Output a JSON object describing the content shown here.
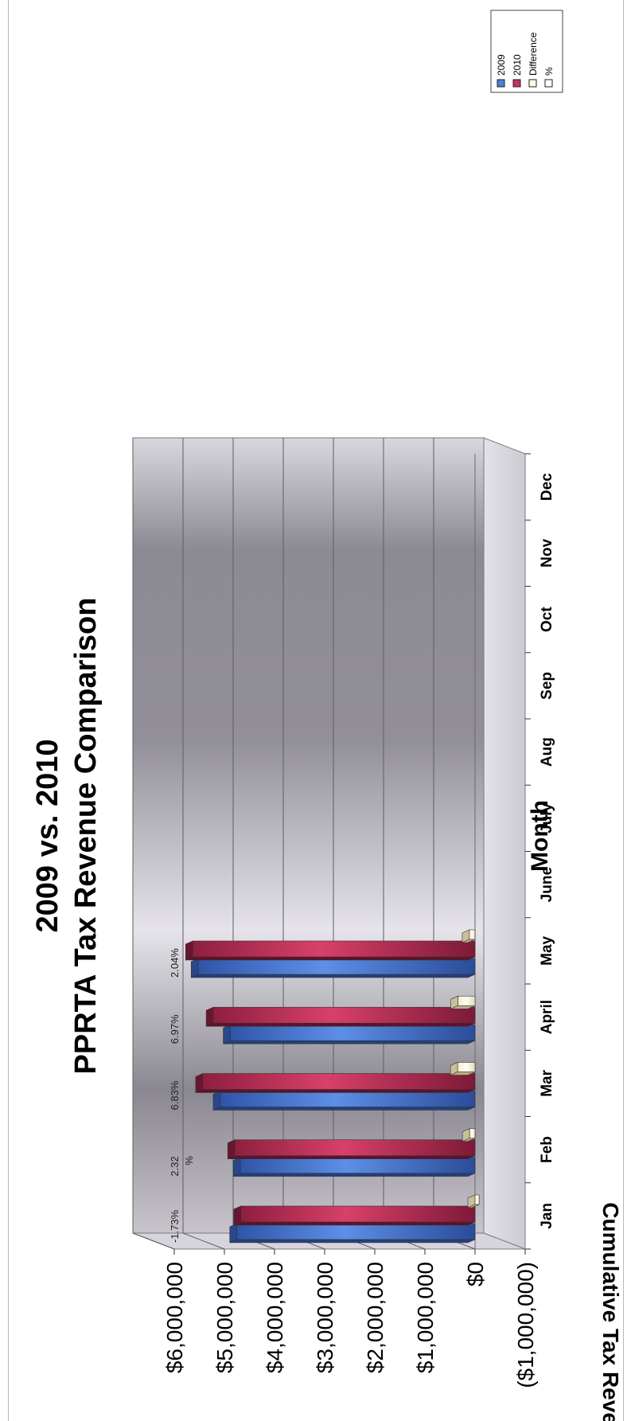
{
  "chart_data": {
    "type": "bar",
    "title": "2009 vs. 2010",
    "subtitle": "PPRTA Tax Revenue Comparison",
    "xlabel": "Month",
    "ylabel": "Cumulative Tax Revenue",
    "categories": [
      "Jan",
      "Feb",
      "Mar",
      "April",
      "May",
      "June",
      "July",
      "Aug",
      "Sep",
      "Oct",
      "Nov",
      "Dec"
    ],
    "series": [
      {
        "name": "2009",
        "values": [
          4750000,
          4680000,
          5080000,
          4880000,
          5520000,
          null,
          null,
          null,
          null,
          null,
          null,
          null
        ]
      },
      {
        "name": "2010",
        "values": [
          4670000,
          4790000,
          5430000,
          5220000,
          5630000,
          null,
          null,
          null,
          null,
          null,
          null,
          null
        ]
      },
      {
        "name": "Difference",
        "values": [
          -82000,
          109000,
          347000,
          340000,
          113000,
          null,
          null,
          null,
          null,
          null,
          null,
          null
        ]
      },
      {
        "name": "%",
        "values": [
          -1.73,
          2.32,
          6.83,
          6.97,
          2.04,
          null,
          null,
          null,
          null,
          null,
          null,
          null
        ]
      }
    ],
    "pct_labels": [
      "-1.73%",
      "2.32\n%",
      "6.83%",
      "6.97%",
      "2.04%",
      "",
      "",
      "",
      "",
      "",
      "",
      ""
    ],
    "yticks": [
      6000000,
      5000000,
      4000000,
      3000000,
      2000000,
      1000000,
      0,
      -1000000
    ],
    "ytick_labels": [
      "$6,000,000",
      "$5,000,000",
      "$4,000,000",
      "$3,000,000",
      "$2,000,000",
      "$1,000,000",
      "$0",
      "($1,000,000)"
    ],
    "ylim": [
      -1000000,
      6000000
    ],
    "grid": true,
    "legend_position": "top-right",
    "colors": {
      "2009": "#4f7fd6",
      "2010": "#c8325c",
      "Difference": "#fffbe8",
      "%": "#ffffff"
    }
  }
}
